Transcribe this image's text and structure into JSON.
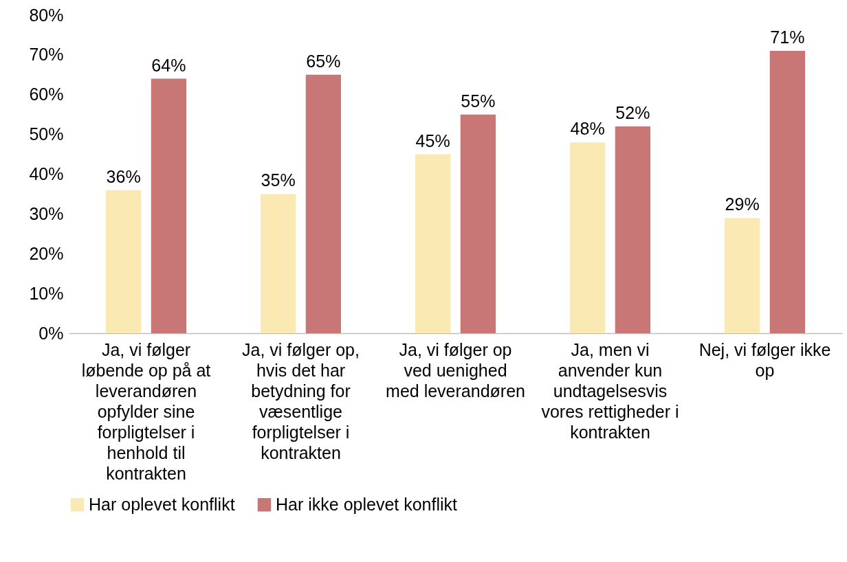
{
  "chart_data": {
    "type": "bar",
    "categories": [
      "Ja, vi følger løbende op på at leverandøren opfylder sine forpligtelser i henhold til kontrakten",
      "Ja, vi følger op, hvis det har betydning for væsentlige forpligtelser i kontrakten",
      "Ja, vi følger op ved uenighed med leverandøren",
      "Ja, men vi anvender kun undtagelsesvis vores rettigheder i kontrakten",
      "Nej, vi følger ikke op"
    ],
    "series": [
      {
        "name": "Har oplevet konflikt",
        "color": "#fbe9b3",
        "values": [
          36,
          35,
          45,
          48,
          29
        ],
        "value_labels": [
          "36%",
          "35%",
          "45%",
          "48%",
          "29%"
        ]
      },
      {
        "name": "Har ikke oplevet konflikt",
        "color": "#c87676",
        "values": [
          64,
          65,
          55,
          52,
          71
        ],
        "value_labels": [
          "64%",
          "65%",
          "55%",
          "52%",
          "71%"
        ]
      }
    ],
    "ylim": [
      0,
      80
    ],
    "yticks": [
      {
        "value": 0,
        "label": "0%"
      },
      {
        "value": 10,
        "label": "10%"
      },
      {
        "value": 20,
        "label": "20%"
      },
      {
        "value": 30,
        "label": "30%"
      },
      {
        "value": 40,
        "label": "40%"
      },
      {
        "value": 50,
        "label": "50%"
      },
      {
        "value": 60,
        "label": "60%"
      },
      {
        "value": 70,
        "label": "70%"
      },
      {
        "value": 80,
        "label": "80%"
      }
    ],
    "grid": false,
    "legend": "bottom"
  }
}
